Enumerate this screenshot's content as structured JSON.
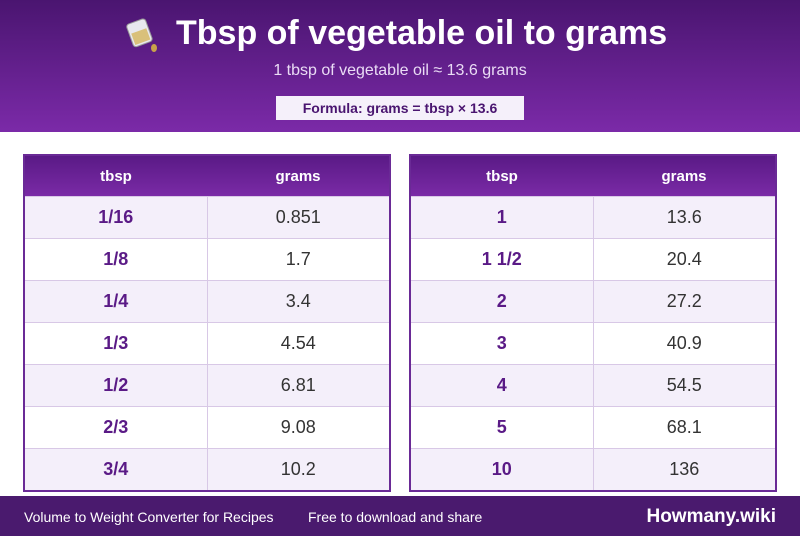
{
  "header": {
    "title": "Tbsp of vegetable oil to grams",
    "subtitle": "1 tbsp of vegetable oil ≈ 13.6 grams",
    "formula": "Formula: grams = tbsp × 13.6"
  },
  "tables": [
    {
      "columns": [
        "tbsp",
        "grams"
      ],
      "rows": [
        [
          "1/16",
          "0.851"
        ],
        [
          "1/8",
          "1.7"
        ],
        [
          "1/4",
          "3.4"
        ],
        [
          "1/3",
          "4.54"
        ],
        [
          "1/2",
          "6.81"
        ],
        [
          "2/3",
          "9.08"
        ],
        [
          "3/4",
          "10.2"
        ]
      ]
    },
    {
      "columns": [
        "tbsp",
        "grams"
      ],
      "rows": [
        [
          "1",
          "13.6"
        ],
        [
          "1 1/2",
          "20.4"
        ],
        [
          "2",
          "27.2"
        ],
        [
          "3",
          "40.9"
        ],
        [
          "4",
          "54.5"
        ],
        [
          "5",
          "68.1"
        ],
        [
          "10",
          "136"
        ]
      ]
    }
  ],
  "footer": {
    "left": "Volume to Weight Converter for Recipes",
    "middle": "Free to download and share",
    "brand": "Howmany.wiki"
  }
}
